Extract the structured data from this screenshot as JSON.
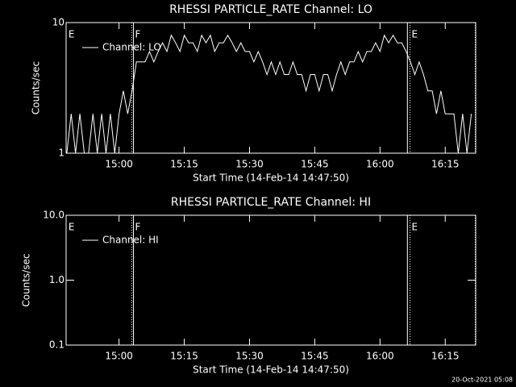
{
  "timestamp": "20-Oct-2021 05:08",
  "chart_data": [
    {
      "type": "line",
      "title": "RHESSI PARTICLE_RATE Channel: LO",
      "x_label": "Start Time (14-Feb-14 14:47:50)",
      "y_label": "Counts/sec",
      "log_y": true,
      "legend": "upper left",
      "background": "#000000",
      "axis_color": "#ffffff",
      "xlim": [
        887.83,
        982
      ],
      "ylim": [
        1,
        10
      ],
      "xticks": [
        {
          "value": 900,
          "label": "15:00"
        },
        {
          "value": 915,
          "label": "15:15"
        },
        {
          "value": 930,
          "label": "15:30"
        },
        {
          "value": 945,
          "label": "15:45"
        },
        {
          "value": 960,
          "label": "16:00"
        },
        {
          "value": 975,
          "label": "16:15"
        }
      ],
      "yticks": [
        1,
        10
      ],
      "vlines": [
        {
          "x": 902.9,
          "style": "dotted"
        },
        {
          "x": 903.3,
          "style": "solid"
        },
        {
          "x": 966.3,
          "style": "solid"
        },
        {
          "x": 966.9,
          "style": "dotted"
        },
        {
          "x": 981.9,
          "style": "dotted"
        }
      ],
      "annotations": [
        {
          "text": "E",
          "x": 888
        },
        {
          "text": "F",
          "x": 903.3
        },
        {
          "text": "E",
          "x": 966.9
        }
      ],
      "series": [
        {
          "name": "Channel: LO",
          "color": "#ffffff",
          "x": [
            888,
            889,
            890,
            891,
            892,
            893,
            894,
            895,
            896,
            897,
            898,
            899,
            900,
            901,
            902,
            903,
            904,
            905,
            906,
            907,
            908,
            909,
            910,
            911,
            912,
            913,
            914,
            915,
            916,
            917,
            918,
            919,
            920,
            921,
            922,
            923,
            924,
            925,
            926,
            927,
            928,
            929,
            930,
            931,
            932,
            933,
            934,
            935,
            936,
            937,
            938,
            939,
            940,
            941,
            942,
            943,
            944,
            945,
            946,
            947,
            948,
            949,
            950,
            951,
            952,
            953,
            954,
            955,
            956,
            957,
            958,
            959,
            960,
            961,
            962,
            963,
            964,
            965,
            966,
            967,
            968,
            969,
            970,
            971,
            972,
            973,
            974,
            975,
            976,
            977,
            978,
            979,
            980,
            981
          ],
          "values": [
            1,
            2,
            1,
            2,
            1,
            1,
            2,
            1,
            2,
            1,
            2,
            1,
            2,
            3,
            2,
            3,
            5,
            5,
            5,
            6,
            5,
            6,
            7,
            6,
            8,
            7,
            6,
            8,
            7,
            7,
            6,
            8,
            7,
            8,
            6,
            7,
            7,
            8,
            7,
            6,
            7,
            6,
            6,
            5,
            6,
            5,
            4,
            5,
            4,
            5,
            4,
            4,
            5,
            4,
            4,
            3,
            4,
            4,
            3,
            4,
            4,
            3,
            4,
            5,
            4,
            5,
            5,
            6,
            5,
            6,
            6,
            7,
            6,
            8,
            7,
            8,
            7,
            7,
            6,
            5,
            4,
            5,
            4,
            3,
            3,
            2,
            3,
            2,
            2,
            2,
            1,
            2,
            1,
            2
          ]
        }
      ]
    },
    {
      "type": "line",
      "title": "RHESSI PARTICLE_RATE Channel: HI",
      "x_label": "Start Time (14-Feb-14 14:47:50)",
      "y_label": "Counts/sec",
      "log_y": true,
      "legend": "upper left",
      "background": "#000000",
      "axis_color": "#ffffff",
      "xlim": [
        887.83,
        982
      ],
      "ylim": [
        0.1,
        10
      ],
      "xticks": [
        {
          "value": 900,
          "label": "15:00"
        },
        {
          "value": 915,
          "label": "15:15"
        },
        {
          "value": 930,
          "label": "15:30"
        },
        {
          "value": 945,
          "label": "15:45"
        },
        {
          "value": 960,
          "label": "16:00"
        },
        {
          "value": 975,
          "label": "16:15"
        }
      ],
      "yticks": [
        {
          "value": 0.1,
          "label": "0.1"
        },
        {
          "value": 1,
          "label": "1.0"
        },
        {
          "value": 10,
          "label": "10.0"
        }
      ],
      "vlines": [
        {
          "x": 902.9,
          "style": "dotted"
        },
        {
          "x": 903.3,
          "style": "solid"
        },
        {
          "x": 966.3,
          "style": "solid"
        },
        {
          "x": 966.9,
          "style": "dotted"
        },
        {
          "x": 981.9,
          "style": "dotted"
        }
      ],
      "annotations": [
        {
          "text": "E",
          "x": 888
        },
        {
          "text": "F",
          "x": 903.3
        },
        {
          "text": "E",
          "x": 966.9
        }
      ],
      "series": [
        {
          "name": "Channel: HI",
          "color": "#ffffff",
          "x": [],
          "values": []
        }
      ]
    }
  ]
}
